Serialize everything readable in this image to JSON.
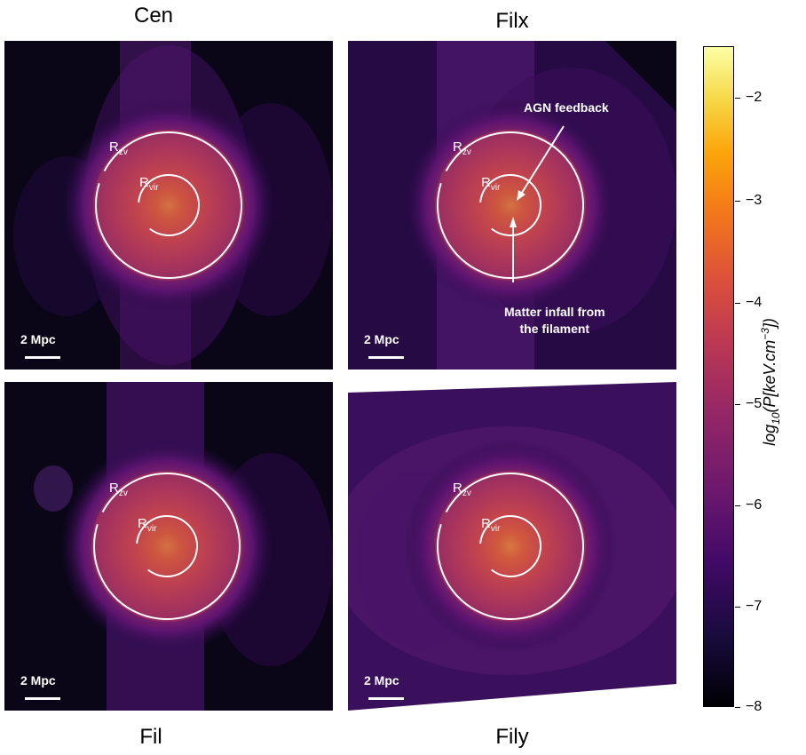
{
  "panels": [
    {
      "title": "Cen",
      "rzv": "R",
      "rzv_sub": "zv",
      "rvir": "R",
      "rvir_sub": "vir",
      "scale": "2 Mpc"
    },
    {
      "title": "Filx",
      "rzv": "R",
      "rzv_sub": "zv",
      "rvir": "R",
      "rvir_sub": "vir",
      "scale": "2 Mpc"
    },
    {
      "title": "Fil",
      "rzv": "R",
      "rzv_sub": "zv",
      "rvir": "R",
      "rvir_sub": "vir",
      "scale": "2 Mpc"
    },
    {
      "title": "Fily",
      "rzv": "R",
      "rzv_sub": "zv",
      "rvir": "R",
      "rvir_sub": "vir",
      "scale": "2 Mpc"
    }
  ],
  "annotations": {
    "agn": "AGN feedback",
    "infall_line1": "Matter infall from",
    "infall_line2": "the filament"
  },
  "colorbar": {
    "label": "log10(P[keV.cm−3])",
    "label_main": "log",
    "label_sub": "10",
    "label_rest": "(P[keV.cm",
    "label_sup": "−3",
    "label_end": "])",
    "ticks": [
      "−2",
      "−3",
      "−4",
      "−5",
      "−6",
      "−7",
      "−8"
    ],
    "colormap": "inferno"
  }
}
